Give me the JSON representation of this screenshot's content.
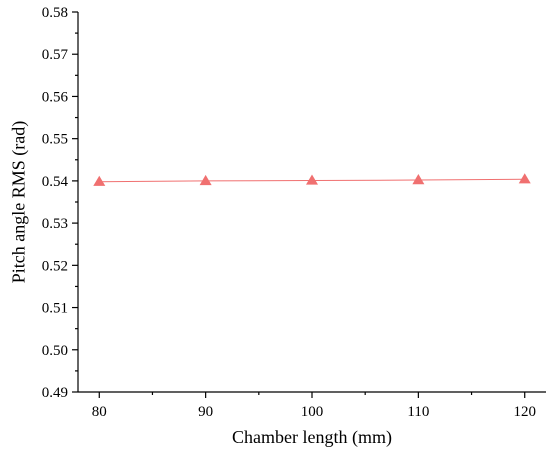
{
  "chart_data": {
    "type": "line",
    "title": "",
    "xlabel": "Chamber length (mm)",
    "ylabel": "Pitch angle RMS (rad)",
    "x": [
      80,
      90,
      100,
      110,
      120
    ],
    "series": [
      {
        "values": [
          0.5398,
          0.54,
          0.5401,
          0.5402,
          0.5404
        ],
        "color": "#f07070",
        "marker": "triangle-up"
      }
    ],
    "xlim": [
      78,
      122
    ],
    "ylim": [
      0.49,
      0.58
    ],
    "xticks": [
      "80",
      "90",
      "100",
      "110",
      "120"
    ],
    "yticks": [
      "0.49",
      "0.50",
      "0.51",
      "0.52",
      "0.53",
      "0.54",
      "0.55",
      "0.56",
      "0.57",
      "0.58"
    ],
    "grid": false,
    "legend": "none"
  }
}
